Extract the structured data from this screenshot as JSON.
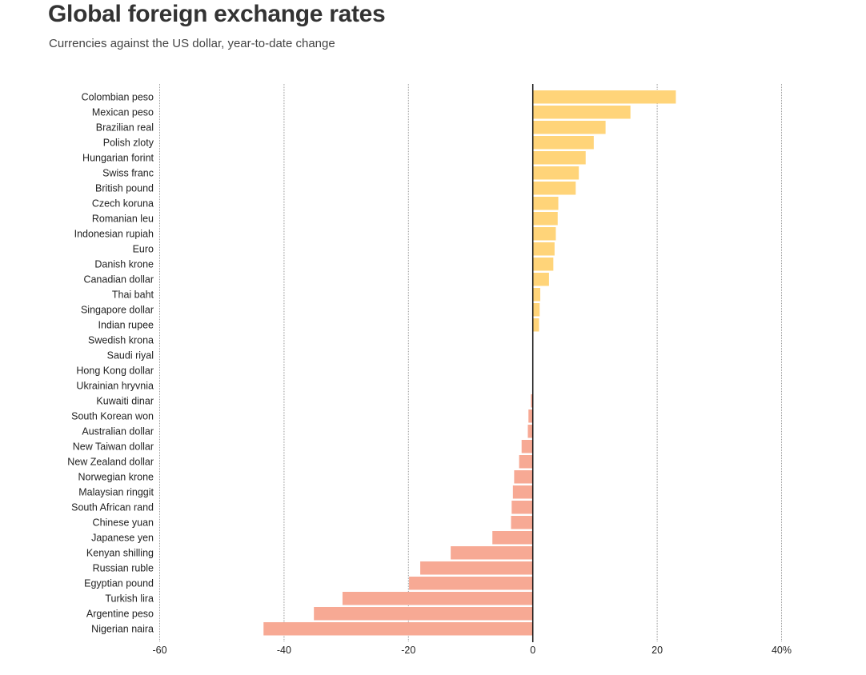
{
  "header": {
    "title": "Global foreign exchange rates",
    "subtitle": "Currencies against the US dollar, year-to-date change"
  },
  "colors": {
    "positive": "#FFD479",
    "negative": "#F7A994",
    "gridline": "#9a9a9a",
    "zero_line": "#111111"
  },
  "chart_data": {
    "type": "bar",
    "orientation": "horizontal",
    "title": "Global foreign exchange rates",
    "subtitle": "Currencies against the US dollar, year-to-date change",
    "xlim": [
      -60,
      40
    ],
    "xticks": [
      -60,
      -40,
      -20,
      0,
      20,
      40
    ],
    "xtick_labels": [
      "-60",
      "-40",
      "-20",
      "0",
      "20",
      "40%"
    ],
    "grid": true,
    "categories": [
      "Colombian peso",
      "Mexican peso",
      "Brazilian real",
      "Polish zloty",
      "Hungarian forint",
      "Swiss franc",
      "British pound",
      "Czech koruna",
      "Romanian leu",
      "Indonesian rupiah",
      "Euro",
      "Danish krone",
      "Canadian dollar",
      "Thai baht",
      "Singapore dollar",
      "Indian rupee",
      "Swedish krona",
      "Saudi riyal",
      "Hong Kong dollar",
      "Ukrainian hryvnia",
      "Kuwaiti dinar",
      "South Korean won",
      "Australian dollar",
      "New Taiwan dollar",
      "New Zealand dollar",
      "Norwegian krone",
      "Malaysian ringgit",
      "South African rand",
      "Chinese yuan",
      "Japanese yen",
      "Kenyan shilling",
      "Russian ruble",
      "Egyptian pound",
      "Turkish lira",
      "Argentine peso",
      "Nigerian naira"
    ],
    "values": [
      23.0,
      15.7,
      11.7,
      9.8,
      8.5,
      7.4,
      6.9,
      4.1,
      4.0,
      3.7,
      3.5,
      3.3,
      2.6,
      1.2,
      1.1,
      1.0,
      0.1,
      0.0,
      0.0,
      0.0,
      -0.3,
      -0.7,
      -0.8,
      -1.8,
      -2.2,
      -3.0,
      -3.2,
      -3.4,
      -3.5,
      -6.5,
      -13.2,
      -18.1,
      -19.9,
      -30.6,
      -35.2,
      -43.3
    ]
  }
}
